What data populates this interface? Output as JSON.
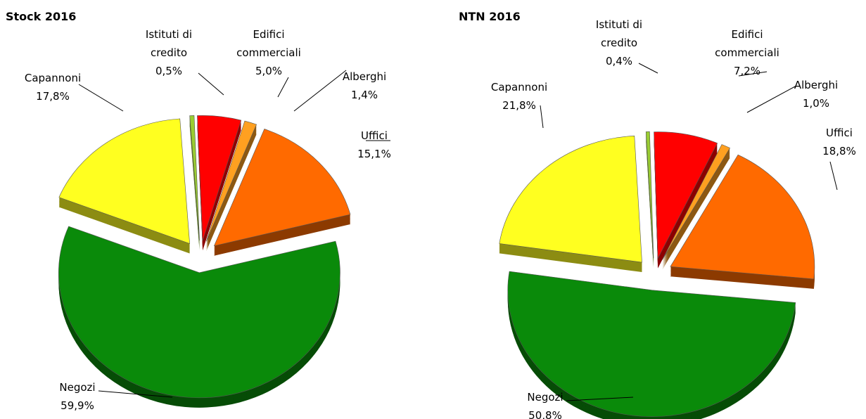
{
  "chart_data": [
    {
      "type": "pie",
      "title": "Stock 2016",
      "categories": [
        "Istituti di credito",
        "Edifici commerciali",
        "Alberghi",
        "Uffici",
        "Negozi",
        "Capannoni"
      ],
      "values": [
        0.5,
        5.0,
        1.4,
        15.1,
        59.9,
        17.8
      ],
      "value_labels": [
        "0,5%",
        "5,0%",
        "1,4%",
        "15,1%",
        "59,9%",
        "17,8%"
      ],
      "colors": [
        "#9acd32",
        "#ff0000",
        "#ffa020",
        "#ff6a00",
        "#0a8a0a",
        "#ffff20"
      ]
    },
    {
      "type": "pie",
      "title": "NTN 2016",
      "categories": [
        "Istituti di credito",
        "Edifici commerciali",
        "Alberghi",
        "Uffici",
        "Negozi",
        "Capannoni"
      ],
      "values": [
        0.4,
        7.2,
        1.0,
        18.8,
        50.8,
        21.8
      ],
      "value_labels": [
        "0,4%",
        "7,2%",
        "1,0%",
        "18,8%",
        "50,8%",
        "21,8%"
      ],
      "colors": [
        "#9acd32",
        "#ff0000",
        "#ffa020",
        "#ff6a00",
        "#0a8a0a",
        "#ffff20"
      ]
    }
  ]
}
